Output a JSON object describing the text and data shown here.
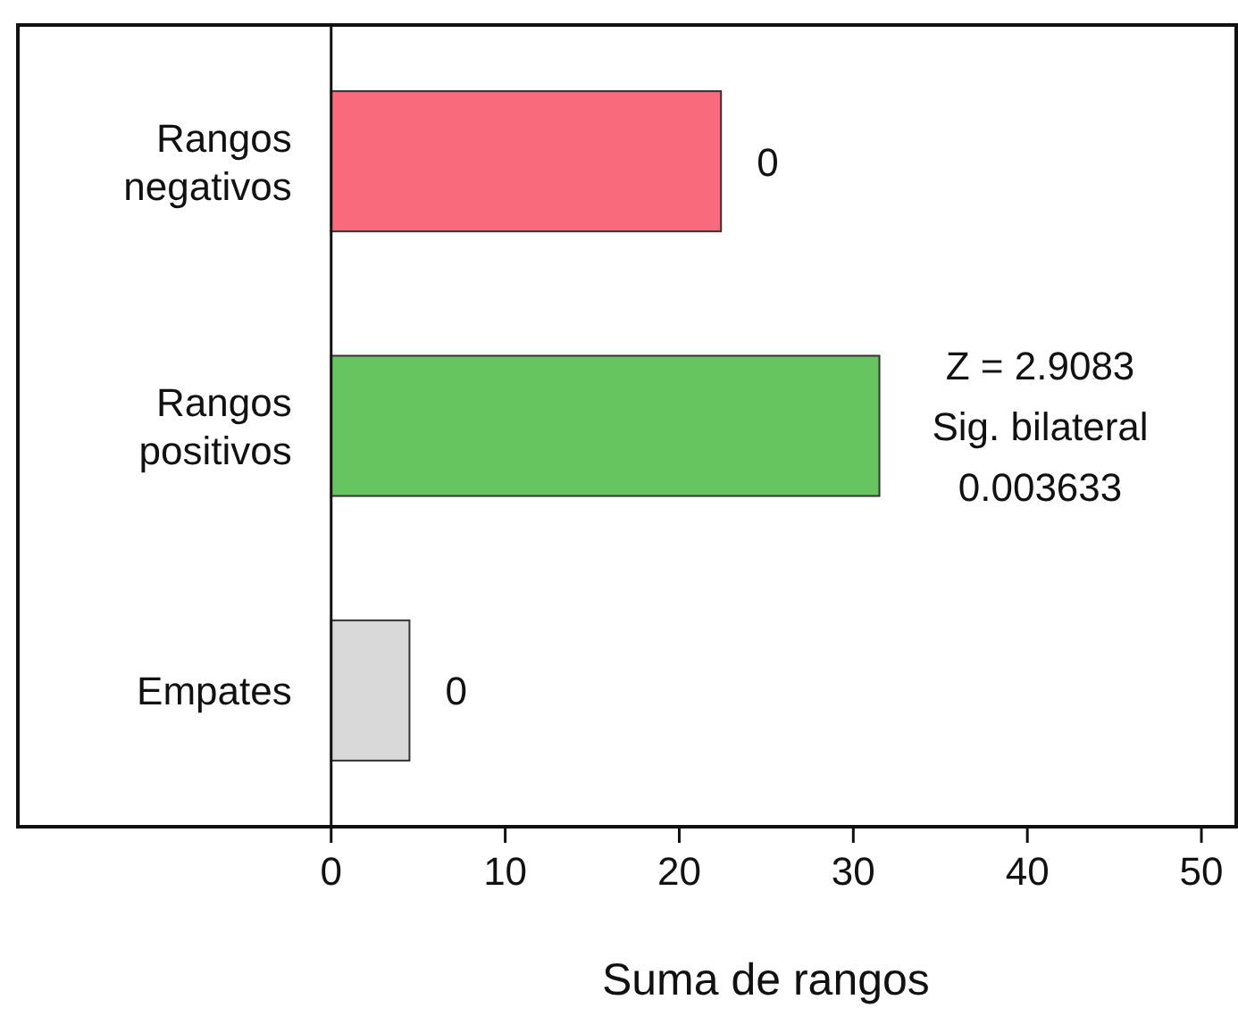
{
  "chart_data": {
    "type": "bar",
    "orientation": "horizontal",
    "categories": [
      "Rangos negativos",
      "Rangos positivos",
      "Empates"
    ],
    "values": [
      22.4,
      31.5,
      4.5
    ],
    "colors": [
      "#f86a7c",
      "#66c55f",
      "#d9d9d9"
    ],
    "xlabel": "Suma de rangos",
    "xlim": [
      -18,
      52
    ],
    "xticks": [
      0,
      10,
      20,
      30,
      40,
      50
    ],
    "grid": false,
    "annotations": [
      {
        "text": "0",
        "x": 22.4,
        "y": "Rangos negativos"
      },
      {
        "text": "Z = 2.9083\nSig. bilateral\n0.003633",
        "x": 31.5,
        "y": "Rangos positivos"
      },
      {
        "text": "0",
        "x": 4.5,
        "y": "Empates"
      }
    ]
  }
}
